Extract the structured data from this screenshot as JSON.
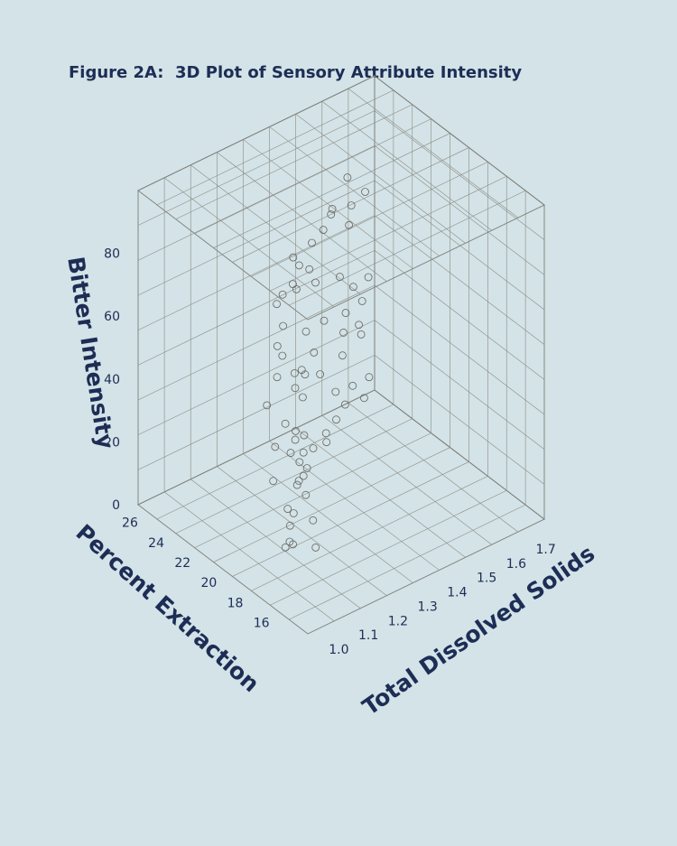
{
  "figure_title": "Figure 2A:  3D Plot of Sensory Attribute Intensity",
  "chart_data": {
    "type": "scatter",
    "projection": "3d",
    "title": "Figure 2A:  3D Plot of Sensory Attribute Intensity",
    "xlabel": "Total Dissolved Solids",
    "ylabel": "Percent Extraction",
    "zlabel": "Bitter Intensity",
    "x_ticks": [
      "1.0",
      "1.1",
      "1.2",
      "1.3",
      "1.4",
      "1.5",
      "1.6",
      "1.7"
    ],
    "y_ticks": [
      "16",
      "18",
      "20",
      "22",
      "24",
      "26"
    ],
    "z_ticks": [
      "0",
      "20",
      "40",
      "60",
      "80"
    ],
    "xlim": [
      0.95,
      1.75
    ],
    "ylim": [
      14.6,
      27.5
    ],
    "zlim": [
      0,
      100
    ],
    "grid": true,
    "marker": "open-circle",
    "colors": {
      "pane": "#fdf6dd",
      "background": "#d3e3e7",
      "text": "#1d2d55",
      "marker": "#6a6a66"
    },
    "points": [
      {
        "x": 1.03,
        "y": 15.8,
        "z": 20
      },
      {
        "x": 1.05,
        "y": 17.0,
        "z": 32
      },
      {
        "x": 1.02,
        "y": 16.5,
        "z": 41
      },
      {
        "x": 1.06,
        "y": 18.2,
        "z": 12
      },
      {
        "x": 1.04,
        "y": 15.2,
        "z": 55
      },
      {
        "x": 1.07,
        "y": 19.0,
        "z": 8
      },
      {
        "x": 1.05,
        "y": 17.8,
        "z": 47
      },
      {
        "x": 1.03,
        "y": 16.0,
        "z": 28
      },
      {
        "x": 1.06,
        "y": 18.6,
        "z": 22
      },
      {
        "x": 1.04,
        "y": 17.3,
        "z": 36
      },
      {
        "x": 1.12,
        "y": 19.5,
        "z": 15
      },
      {
        "x": 1.15,
        "y": 20.4,
        "z": 30
      },
      {
        "x": 1.1,
        "y": 18.9,
        "z": 44
      },
      {
        "x": 1.14,
        "y": 21.2,
        "z": 52
      },
      {
        "x": 1.13,
        "y": 20.0,
        "z": 9
      },
      {
        "x": 1.16,
        "y": 21.8,
        "z": 27
      },
      {
        "x": 1.11,
        "y": 19.2,
        "z": 61
      },
      {
        "x": 1.15,
        "y": 20.8,
        "z": 38
      },
      {
        "x": 1.12,
        "y": 19.8,
        "z": 5
      },
      {
        "x": 1.14,
        "y": 21.5,
        "z": 18
      },
      {
        "x": 1.22,
        "y": 21.0,
        "z": 25
      },
      {
        "x": 1.25,
        "y": 22.3,
        "z": 40
      },
      {
        "x": 1.2,
        "y": 20.5,
        "z": 33
      },
      {
        "x": 1.24,
        "y": 23.0,
        "z": 58
      },
      {
        "x": 1.23,
        "y": 21.7,
        "z": 12
      },
      {
        "x": 1.21,
        "y": 22.8,
        "z": 67
      },
      {
        "x": 1.26,
        "y": 23.5,
        "z": 46
      },
      {
        "x": 1.22,
        "y": 21.3,
        "z": 21
      },
      {
        "x": 1.25,
        "y": 22.0,
        "z": 80
      },
      {
        "x": 1.23,
        "y": 24.0,
        "z": 30
      },
      {
        "x": 1.32,
        "y": 22.5,
        "z": 17
      },
      {
        "x": 1.35,
        "y": 23.8,
        "z": 35
      },
      {
        "x": 1.3,
        "y": 22.0,
        "z": 50
      },
      {
        "x": 1.34,
        "y": 24.5,
        "z": 62
      },
      {
        "x": 1.33,
        "y": 23.2,
        "z": 8
      },
      {
        "x": 1.31,
        "y": 25.0,
        "z": 42
      },
      {
        "x": 1.36,
        "y": 24.2,
        "z": 26
      },
      {
        "x": 1.32,
        "y": 22.8,
        "z": 73
      },
      {
        "x": 1.35,
        "y": 25.5,
        "z": 55
      },
      {
        "x": 1.33,
        "y": 23.6,
        "z": 38
      },
      {
        "x": 1.42,
        "y": 23.0,
        "z": 20
      },
      {
        "x": 1.45,
        "y": 24.6,
        "z": 45
      },
      {
        "x": 1.4,
        "y": 22.6,
        "z": 31
      },
      {
        "x": 1.44,
        "y": 25.3,
        "z": 68
      },
      {
        "x": 1.43,
        "y": 24.0,
        "z": 12
      },
      {
        "x": 1.41,
        "y": 25.8,
        "z": 53
      },
      {
        "x": 1.46,
        "y": 26.2,
        "z": 36
      },
      {
        "x": 1.42,
        "y": 23.4,
        "z": 84
      },
      {
        "x": 1.45,
        "y": 24.9,
        "z": 27
      },
      {
        "x": 1.43,
        "y": 26.5,
        "z": 60
      },
      {
        "x": 1.52,
        "y": 24.0,
        "z": 23
      },
      {
        "x": 1.55,
        "y": 25.2,
        "z": 41
      },
      {
        "x": 1.5,
        "y": 23.5,
        "z": 57
      },
      {
        "x": 1.54,
        "y": 26.0,
        "z": 72
      },
      {
        "x": 1.53,
        "y": 24.8,
        "z": 14
      },
      {
        "x": 1.51,
        "y": 26.6,
        "z": 48
      },
      {
        "x": 1.56,
        "y": 25.6,
        "z": 33
      },
      {
        "x": 1.52,
        "y": 24.4,
        "z": 88
      },
      {
        "x": 1.55,
        "y": 26.9,
        "z": 62
      },
      {
        "x": 1.53,
        "y": 25.0,
        "z": 29
      },
      {
        "x": 1.62,
        "y": 25.0,
        "z": 18
      },
      {
        "x": 1.65,
        "y": 26.2,
        "z": 37
      },
      {
        "x": 1.6,
        "y": 24.6,
        "z": 52
      },
      {
        "x": 1.64,
        "y": 26.8,
        "z": 66
      },
      {
        "x": 1.63,
        "y": 25.6,
        "z": 9
      },
      {
        "x": 1.61,
        "y": 27.0,
        "z": 44
      },
      {
        "x": 1.66,
        "y": 26.5,
        "z": 25
      },
      {
        "x": 1.62,
        "y": 25.3,
        "z": 76
      },
      {
        "x": 1.65,
        "y": 27.2,
        "z": 58
      },
      {
        "x": 1.63,
        "y": 26.0,
        "z": 31
      }
    ]
  }
}
